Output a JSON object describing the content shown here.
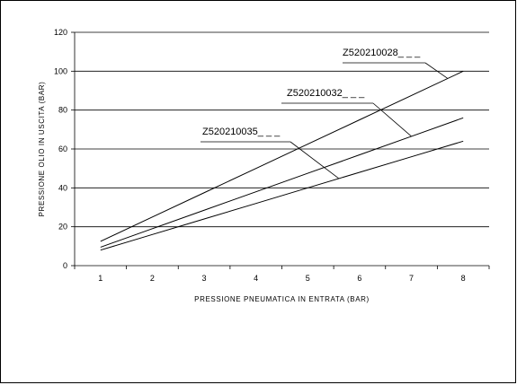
{
  "chart_data": {
    "type": "line",
    "title": "",
    "xlabel": "PRESSIONE PNEUMATICA IN ENTRATA (BAR)",
    "ylabel": "PRESSIONE OLIO IN USCITA (BAR)",
    "x": [
      1,
      2,
      3,
      4,
      5,
      6,
      7,
      8
    ],
    "xlim": [
      0.5,
      8.5
    ],
    "ylim": [
      0,
      120
    ],
    "yticks": [
      0,
      20,
      40,
      60,
      80,
      100,
      120
    ],
    "grid": "horizontal",
    "legend": "leader-line labels inside plot",
    "series": [
      {
        "name": "Z520210028_ _ _",
        "values": [
          12.5,
          25,
          37.5,
          50,
          62.5,
          75,
          87.5,
          100
        ],
        "label_at_x": 7.7
      },
      {
        "name": "Z520210032_ _ _",
        "values": [
          9.5,
          19,
          28.5,
          38,
          47.5,
          57,
          66.5,
          76
        ],
        "label_at_x": 7.0
      },
      {
        "name": "Z520210035_ _ _",
        "values": [
          8,
          16,
          24,
          32,
          40,
          48,
          56,
          64
        ],
        "label_at_x": 5.6
      }
    ],
    "colors": {
      "line": "#000000",
      "grid": "#000000",
      "background": "#ffffff"
    }
  }
}
